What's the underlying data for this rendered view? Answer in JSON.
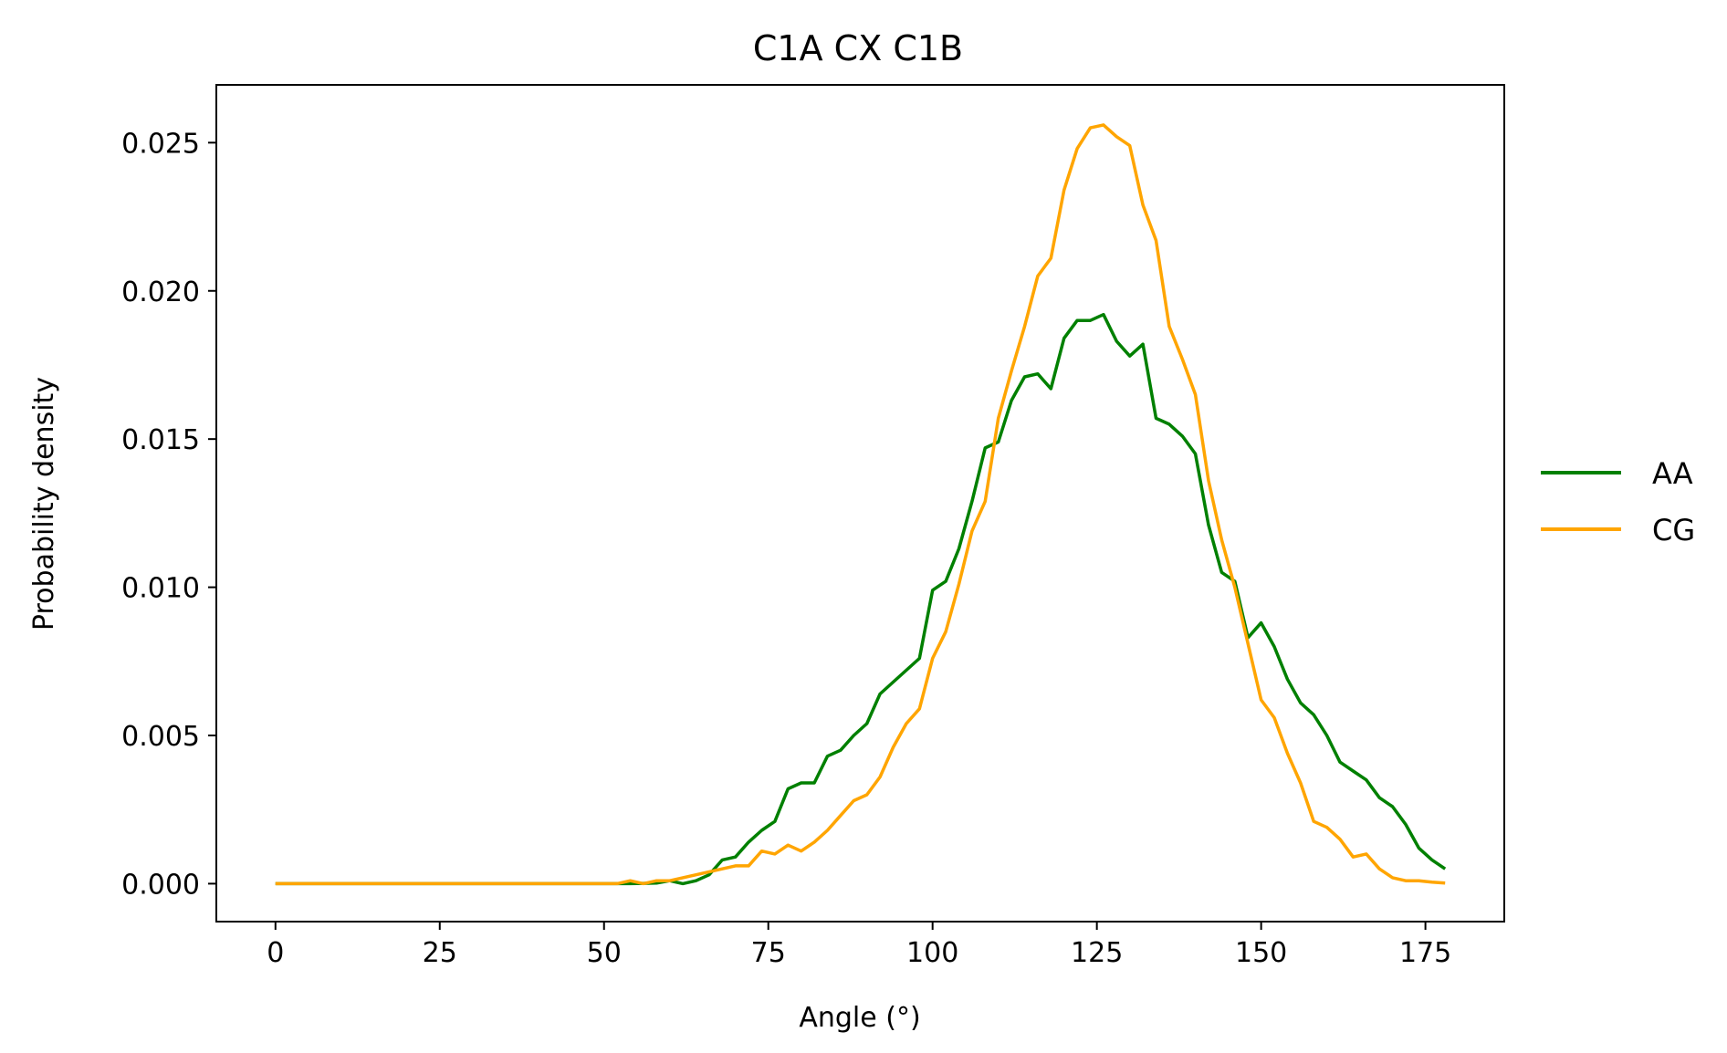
{
  "chart_data": {
    "type": "line",
    "title": "C1A CX C1B",
    "xlabel": "Angle (°)",
    "ylabel": "Probability density",
    "xlim": [
      -9,
      187
    ],
    "ylim": [
      -0.00128,
      0.02695
    ],
    "xticks": [
      0,
      25,
      50,
      75,
      100,
      125,
      150,
      175
    ],
    "xtick_labels": [
      "0",
      "25",
      "50",
      "75",
      "100",
      "125",
      "150",
      "175"
    ],
    "yticks": [
      0.0,
      0.005,
      0.01,
      0.015,
      0.02,
      0.025
    ],
    "ytick_labels": [
      "0.000",
      "0.005",
      "0.010",
      "0.015",
      "0.020",
      "0.025"
    ],
    "grid": false,
    "legend_position": "outside-right",
    "x": [
      0,
      2,
      4,
      6,
      8,
      10,
      12,
      14,
      16,
      18,
      20,
      22,
      24,
      26,
      28,
      30,
      32,
      34,
      36,
      38,
      40,
      42,
      44,
      46,
      48,
      50,
      52,
      54,
      56,
      58,
      60,
      62,
      64,
      66,
      68,
      70,
      72,
      74,
      76,
      78,
      80,
      82,
      84,
      86,
      88,
      90,
      92,
      94,
      96,
      98,
      100,
      102,
      104,
      106,
      108,
      110,
      112,
      114,
      116,
      118,
      120,
      122,
      124,
      126,
      128,
      130,
      132,
      134,
      136,
      138,
      140,
      142,
      144,
      146,
      148,
      150,
      152,
      154,
      156,
      158,
      160,
      162,
      164,
      166,
      168,
      170,
      172,
      174,
      176,
      178
    ],
    "series": [
      {
        "name": "AA",
        "color": "#008000",
        "values": [
          0,
          0,
          0,
          0,
          0,
          0,
          0,
          0,
          0,
          0,
          0,
          0,
          0,
          0,
          0,
          0,
          0,
          0,
          0,
          0,
          0,
          0,
          0,
          0,
          0,
          0,
          0,
          0,
          1e-05,
          2e-05,
          0.0001,
          0.0,
          0.0001,
          0.0003,
          0.0008,
          0.0009,
          0.0014,
          0.0018,
          0.0021,
          0.0032,
          0.0034,
          0.0034,
          0.0043,
          0.0045,
          0.005,
          0.0054,
          0.0064,
          0.0068,
          0.0072,
          0.0076,
          0.0099,
          0.0102,
          0.0113,
          0.0129,
          0.0147,
          0.0149,
          0.0163,
          0.0171,
          0.0172,
          0.0167,
          0.0184,
          0.019,
          0.019,
          0.0192,
          0.0183,
          0.0178,
          0.0182,
          0.0157,
          0.0155,
          0.0151,
          0.0145,
          0.0121,
          0.0105,
          0.0102,
          0.0083,
          0.0088,
          0.008,
          0.0069,
          0.0061,
          0.0057,
          0.005,
          0.0041,
          0.0038,
          0.0035,
          0.0029,
          0.0026,
          0.002,
          0.0012,
          0.0008,
          0.0005
        ]
      },
      {
        "name": "CG",
        "color": "#FFA500",
        "values": [
          0,
          0,
          0,
          0,
          0,
          0,
          0,
          0,
          0,
          0,
          0,
          0,
          0,
          0,
          0,
          0,
          0,
          0,
          0,
          0,
          0,
          0,
          0,
          0,
          0,
          0,
          0,
          0.0001,
          0.0,
          0.0001,
          0.0001,
          0.0002,
          0.0003,
          0.0004,
          0.0005,
          0.0006,
          0.0006,
          0.0011,
          0.001,
          0.0013,
          0.0011,
          0.0014,
          0.0018,
          0.0023,
          0.0028,
          0.003,
          0.0036,
          0.0046,
          0.0054,
          0.0059,
          0.0076,
          0.0085,
          0.0101,
          0.0119,
          0.0129,
          0.0157,
          0.0173,
          0.0188,
          0.0205,
          0.0211,
          0.0234,
          0.0248,
          0.0255,
          0.0256,
          0.0252,
          0.0249,
          0.0229,
          0.0217,
          0.0188,
          0.0177,
          0.0165,
          0.0136,
          0.0116,
          0.01,
          0.0081,
          0.0062,
          0.0056,
          0.0044,
          0.0034,
          0.0021,
          0.0019,
          0.0015,
          0.0009,
          0.001,
          0.0005,
          0.0002,
          0.0001,
          0.0001,
          5e-05,
          2e-05
        ]
      }
    ]
  }
}
